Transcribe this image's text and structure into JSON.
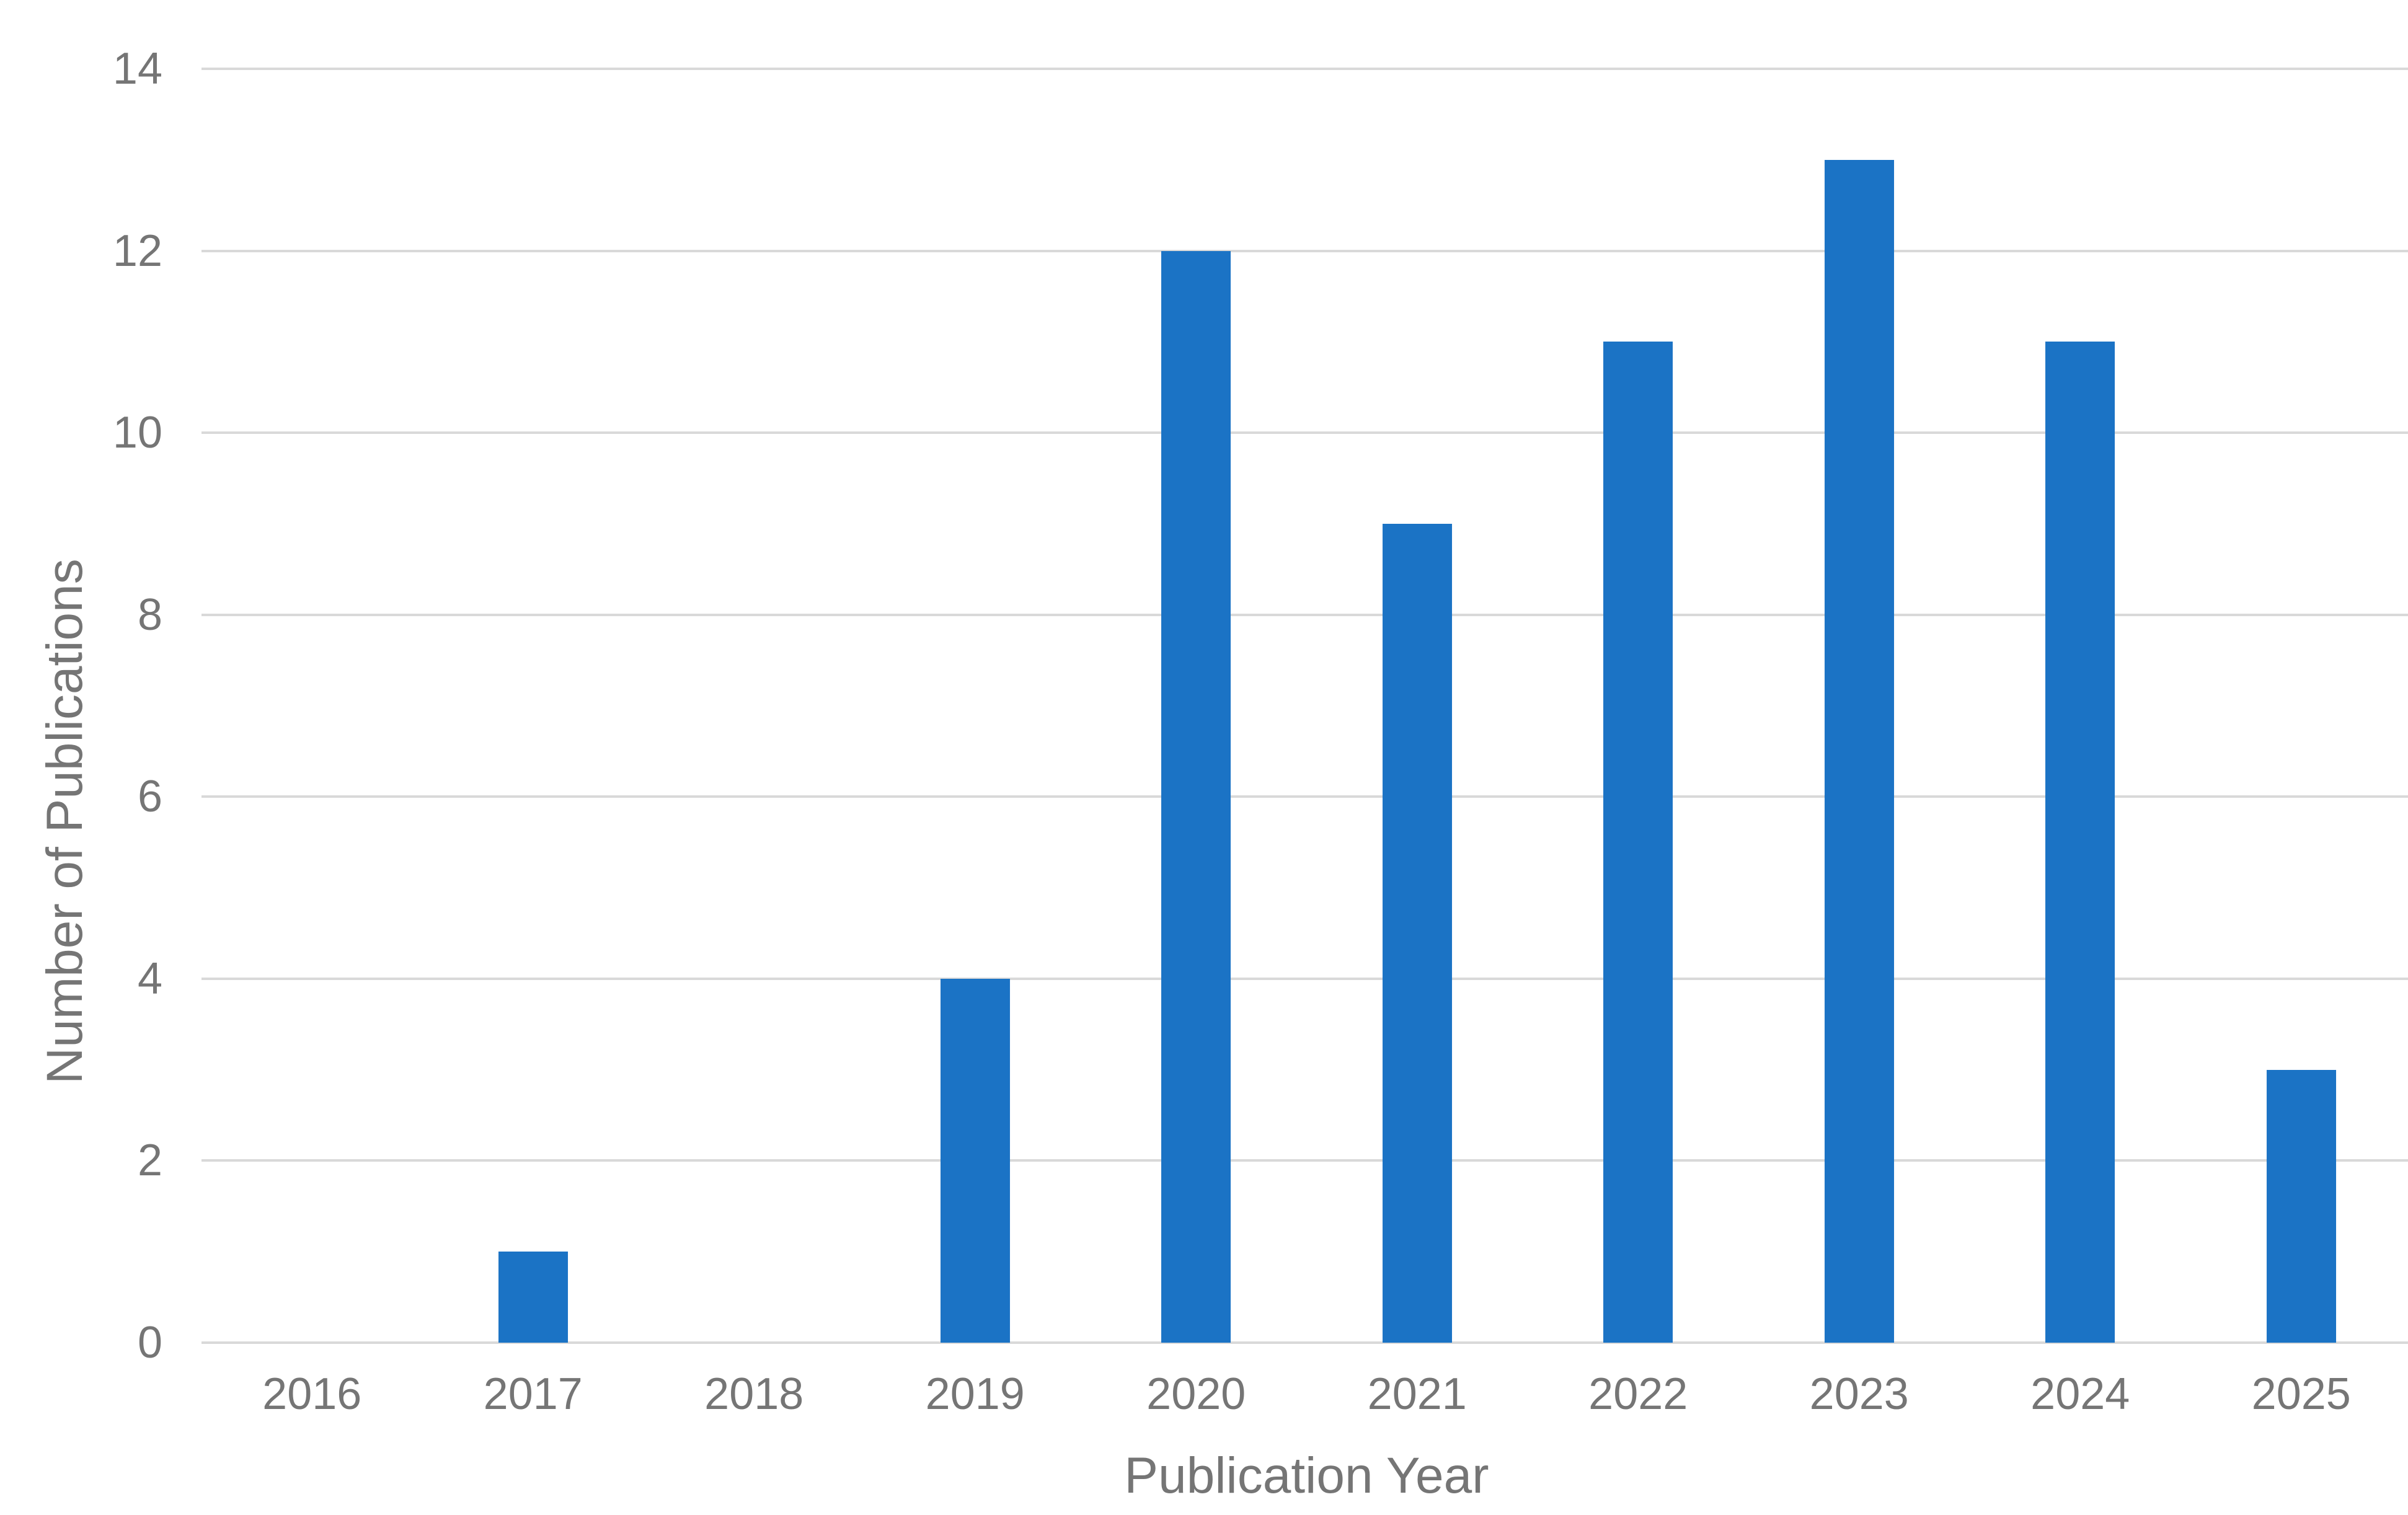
{
  "chart_data": {
    "type": "bar",
    "categories": [
      "2016",
      "2017",
      "2018",
      "2019",
      "2020",
      "2021",
      "2022",
      "2023",
      "2024",
      "2025"
    ],
    "values": [
      0,
      1,
      0,
      4,
      12,
      9,
      11,
      13,
      11,
      3
    ],
    "title": "",
    "xlabel": "Publication Year",
    "ylabel": "Number of Publications",
    "ylim": [
      0,
      14
    ],
    "yticks": [
      0,
      2,
      4,
      6,
      8,
      10,
      12,
      14
    ],
    "grid": "horizontal",
    "legend": "none",
    "colors": {
      "bar": "#1B73C5",
      "gridline": "#D9D9D9",
      "text": "#757575",
      "background": "#FFFFFF"
    }
  }
}
